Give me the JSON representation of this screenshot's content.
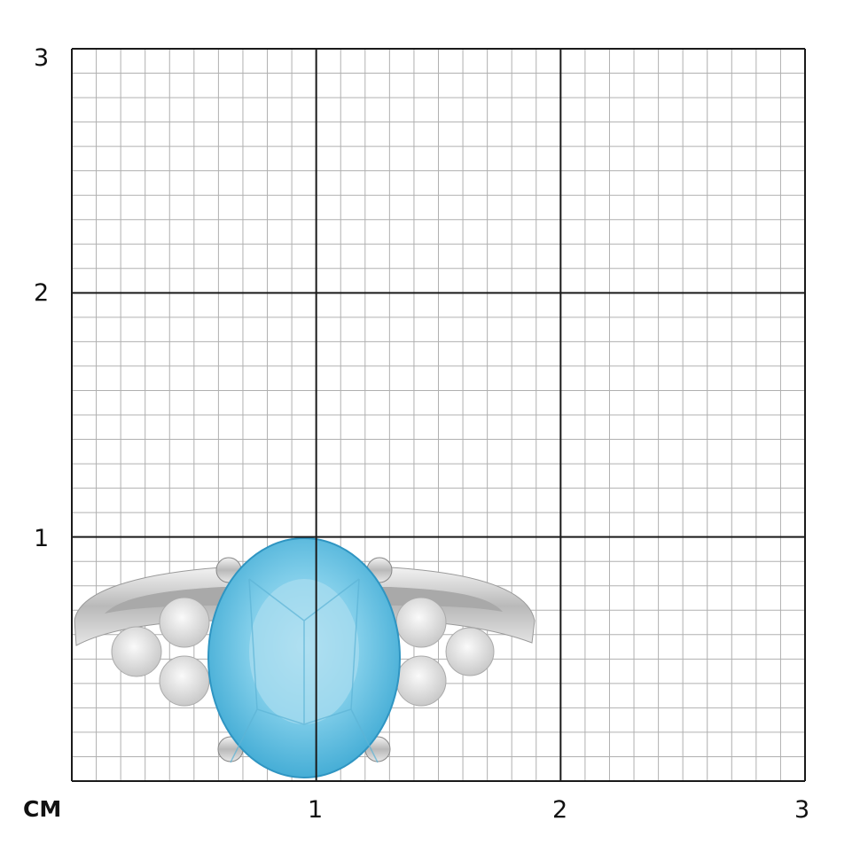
{
  "scale": {
    "unit_label": "CM",
    "y_labels": [
      "1",
      "2",
      "3"
    ],
    "x_labels": [
      "1",
      "2",
      "3"
    ],
    "range_cm": [
      0,
      3
    ],
    "minor_divisions_per_cm": 10
  },
  "colors": {
    "grid_minor": "#b0b0b0",
    "grid_major": "#1a1a1a",
    "stone": "#4fb8dc",
    "metal": "#d8d8d8",
    "diamond": "#e9e9e9"
  },
  "image": {
    "subject_icon": "ring-with-blue-oval-gemstone-and-diamonds"
  }
}
